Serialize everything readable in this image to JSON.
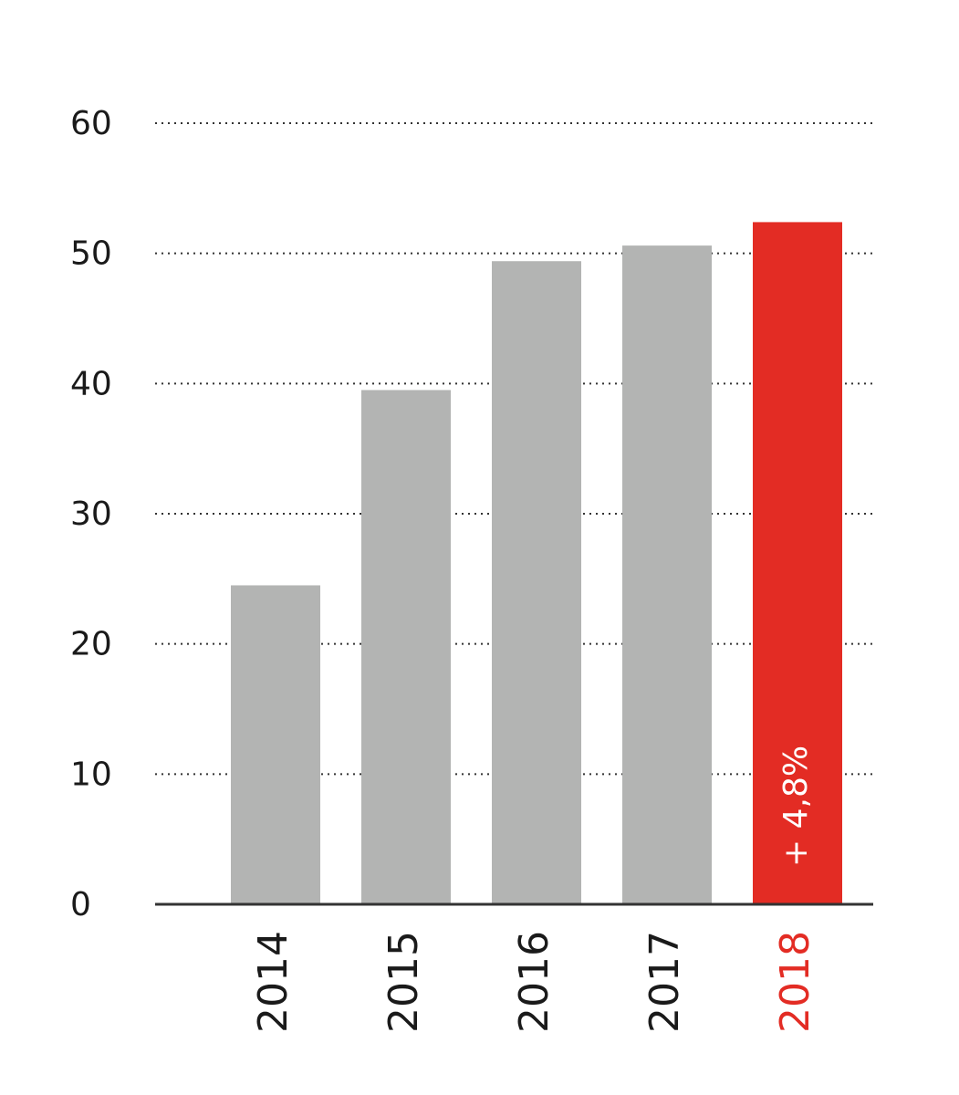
{
  "chart_data": {
    "type": "bar",
    "categories": [
      "2014",
      "2015",
      "2016",
      "2017",
      "2018"
    ],
    "values": [
      24.5,
      39.5,
      49.4,
      50.6,
      52.4
    ],
    "ylim": [
      0,
      60
    ],
    "yticks": [
      0,
      10,
      20,
      30,
      40,
      50,
      60
    ],
    "grid": true,
    "colors": {
      "default": "#b3b4b3",
      "highlight": "#e32c24",
      "axis": "#333333",
      "grid": "#333333"
    },
    "highlight_index": 4,
    "annotations": [
      {
        "category": "2018",
        "text": "+ 4,8%"
      }
    ]
  }
}
